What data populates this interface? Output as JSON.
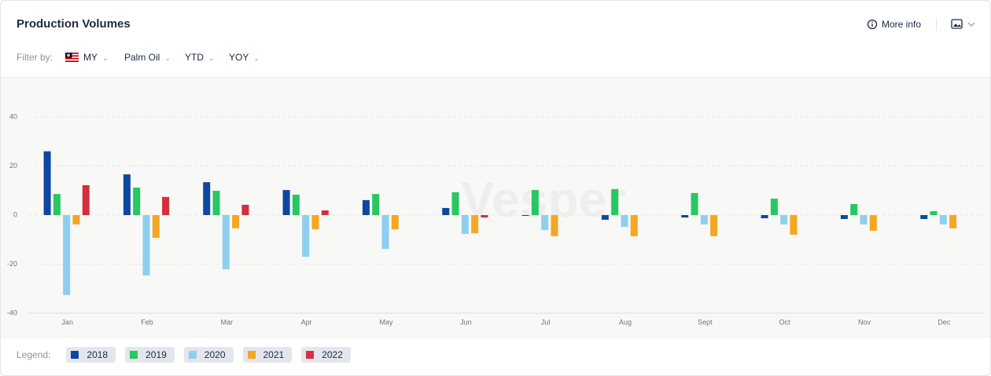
{
  "header": {
    "title": "Production Volumes",
    "more_info": "More info"
  },
  "filters": {
    "label": "Filter by:",
    "items": [
      "MY",
      "Palm Oil",
      "YTD",
      "YOY"
    ]
  },
  "watermark": "Vesper",
  "legend": {
    "label": "Legend:"
  },
  "chart_data": {
    "type": "bar",
    "categories": [
      "Jan",
      "Feb",
      "Mar",
      "Apr",
      "May",
      "Jun",
      "Jul",
      "Aug",
      "Sept",
      "Oct",
      "Nov",
      "Dec"
    ],
    "series": [
      {
        "name": "2018",
        "color": "#0d47a1",
        "values": [
          26,
          16.6,
          13.4,
          10.2,
          6.1,
          2.9,
          -0.3,
          -1.9,
          -1.0,
          -1.3,
          -1.6,
          -1.6
        ]
      },
      {
        "name": "2019",
        "color": "#27c763",
        "values": [
          8.6,
          11.2,
          9.9,
          8.3,
          8.6,
          9.3,
          10.2,
          10.6,
          9.0,
          6.7,
          4.5,
          1.6
        ]
      },
      {
        "name": "2020",
        "color": "#8ecfef",
        "values": [
          -32.6,
          -24.6,
          -22.1,
          -17,
          -13.8,
          -7.7,
          -6.1,
          -4.8,
          -3.8,
          -3.8,
          -3.8,
          -3.8
        ]
      },
      {
        "name": "2021",
        "color": "#f5a623",
        "values": [
          -3.8,
          -9.3,
          -5.4,
          -5.8,
          -5.8,
          -7.4,
          -8.6,
          -8.6,
          -8.6,
          -8.0,
          -6.4,
          -5.4
        ]
      },
      {
        "name": "2022",
        "color": "#d32f3f",
        "values": [
          12.2,
          7.4,
          4.2,
          1.9,
          null,
          -1.0,
          null,
          null,
          null,
          null,
          null,
          null
        ]
      }
    ],
    "ylim": [
      -40,
      40
    ],
    "yticks": [
      -40,
      -20,
      0,
      20,
      40
    ],
    "grid": true
  }
}
